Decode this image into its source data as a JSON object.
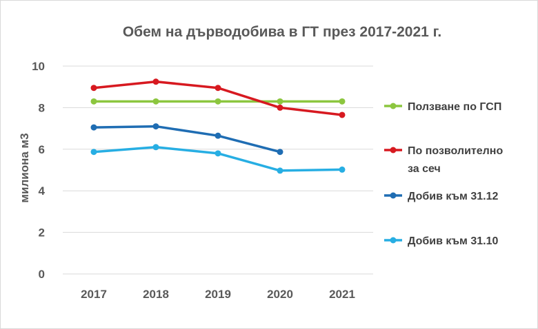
{
  "chart_data": {
    "type": "line",
    "title": "Обем на дърводобива в ГТ през 2017-2021 г.",
    "xlabel": "",
    "ylabel": "милиона м3",
    "categories": [
      "2017",
      "2018",
      "2019",
      "2020",
      "2021"
    ],
    "ylim": [
      0,
      10
    ],
    "yticks": [
      "0",
      "2",
      "4",
      "6",
      "8",
      "10"
    ],
    "grid": true,
    "legend_position": "right",
    "series": [
      {
        "name": "Ползване по ГСП",
        "color": "#8cc63f",
        "values": [
          8.3,
          8.3,
          8.3,
          8.3,
          8.3
        ]
      },
      {
        "name": "По позволително за сеч",
        "color": "#d71920",
        "values": [
          8.95,
          9.25,
          8.95,
          8.0,
          7.65
        ]
      },
      {
        "name": "Добив към 31.12",
        "color": "#1f6db3",
        "values": [
          7.05,
          7.1,
          6.65,
          5.87,
          null
        ]
      },
      {
        "name": "Добив към 31.10",
        "color": "#27aee3",
        "values": [
          5.87,
          6.1,
          5.8,
          4.97,
          5.02
        ]
      }
    ]
  },
  "legend_lines": [
    [
      "Ползване по ГСП"
    ],
    [
      "По позволително",
      "за сеч"
    ],
    [
      "Добив към 31.12"
    ],
    [
      "Добив към 31.10"
    ]
  ]
}
